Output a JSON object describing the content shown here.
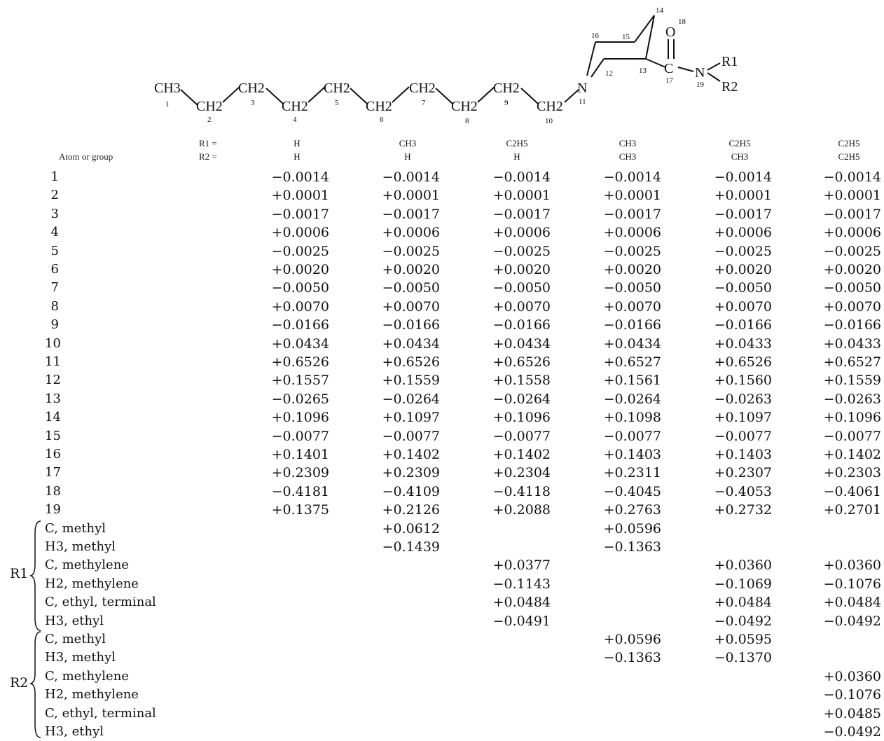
{
  "structure": {
    "labels": {
      "ch3": "CH3",
      "ch2": "CH2",
      "n": "N",
      "c": "C",
      "o": "O",
      "r1": "R1",
      "r2": "R2",
      "nums": [
        "1",
        "2",
        "3",
        "4",
        "5",
        "6",
        "7",
        "8",
        "9",
        "10",
        "11",
        "12",
        "13",
        "14",
        "15",
        "16",
        "17",
        "18",
        "19"
      ]
    }
  },
  "header": {
    "atom_label": "Atom or group",
    "r1_label": "R1 =",
    "r2_label": "R2 =",
    "columns": [
      {
        "r1": "H",
        "r2": "H"
      },
      {
        "r1": "CH3",
        "r2": "H"
      },
      {
        "r1": "C2H5",
        "r2": "H"
      },
      {
        "r1": "CH3",
        "r2": "CH3"
      },
      {
        "r1": "C2H5",
        "r2": "CH3"
      },
      {
        "r1": "C2H5",
        "r2": "C2H5"
      }
    ]
  },
  "rows": [
    {
      "name": "1",
      "v": [
        "−0.0014",
        "−0.0014",
        "−0.0014",
        "−0.0014",
        "−0.0014",
        "−0.0014"
      ]
    },
    {
      "name": "2",
      "v": [
        "+0.0001",
        "+0.0001",
        "+0.0001",
        "+0.0001",
        "+0.0001",
        "+0.0001"
      ]
    },
    {
      "name": "3",
      "v": [
        "−0.0017",
        "−0.0017",
        "−0.0017",
        "−0.0017",
        "−0.0017",
        "−0.0017"
      ]
    },
    {
      "name": "4",
      "v": [
        "+0.0006",
        "+0.0006",
        "+0.0006",
        "+0.0006",
        "+0.0006",
        "+0.0006"
      ]
    },
    {
      "name": "5",
      "v": [
        "−0.0025",
        "−0.0025",
        "−0.0025",
        "−0.0025",
        "−0.0025",
        "−0.0025"
      ]
    },
    {
      "name": "6",
      "v": [
        "+0.0020",
        "+0.0020",
        "+0.0020",
        "+0.0020",
        "+0.0020",
        "+0.0020"
      ]
    },
    {
      "name": "7",
      "v": [
        "−0.0050",
        "−0.0050",
        "−0.0050",
        "−0.0050",
        "−0.0050",
        "−0.0050"
      ]
    },
    {
      "name": "8",
      "v": [
        "+0.0070",
        "+0.0070",
        "+0.0070",
        "+0.0070",
        "+0.0070",
        "+0.0070"
      ]
    },
    {
      "name": "9",
      "v": [
        "−0.0166",
        "−0.0166",
        "−0.0166",
        "−0.0166",
        "−0.0166",
        "−0.0166"
      ]
    },
    {
      "name": "10",
      "v": [
        "+0.0434",
        "+0.0434",
        "+0.0434",
        "+0.0434",
        "+0.0433",
        "+0.0433"
      ]
    },
    {
      "name": "11",
      "v": [
        "+0.6526",
        "+0.6526",
        "+0.6526",
        "+0.6527",
        "+0.6526",
        "+0.6527"
      ]
    },
    {
      "name": "12",
      "v": [
        "+0.1557",
        "+0.1559",
        "+0.1558",
        "+0.1561",
        "+0.1560",
        "+0.1559"
      ]
    },
    {
      "name": "13",
      "v": [
        "−0.0265",
        "−0.0264",
        "−0.0264",
        "−0.0264",
        "−0.0263",
        "−0.0263"
      ]
    },
    {
      "name": "14",
      "v": [
        "+0.1096",
        "+0.1097",
        "+0.1096",
        "+0.1098",
        "+0.1097",
        "+0.1096"
      ]
    },
    {
      "name": "15",
      "v": [
        "−0.0077",
        "−0.0077",
        "−0.0077",
        "−0.0077",
        "−0.0077",
        "−0.0077"
      ]
    },
    {
      "name": "16",
      "v": [
        "+0.1401",
        "+0.1402",
        "+0.1402",
        "+0.1403",
        "+0.1403",
        "+0.1402"
      ]
    },
    {
      "name": "17",
      "v": [
        "+0.2309",
        "+0.2309",
        "+0.2304",
        "+0.2311",
        "+0.2307",
        "+0.2303"
      ]
    },
    {
      "name": "18",
      "v": [
        "−0.4181",
        "−0.4109",
        "−0.4118",
        "−0.4045",
        "−0.4053",
        "−0.4061"
      ]
    },
    {
      "name": "19",
      "v": [
        "+0.1375",
        "+0.2126",
        "+0.2088",
        "+0.2763",
        "+0.2732",
        "+0.2701"
      ]
    },
    {
      "name": "C, methyl",
      "v": [
        "",
        "+0.0612",
        "",
        "+0.0596",
        "",
        ""
      ]
    },
    {
      "name": "H3, methyl",
      "v": [
        "",
        "−0.1439",
        "",
        "−0.1363",
        "",
        ""
      ]
    },
    {
      "name": "C, methylene",
      "v": [
        "",
        "",
        "+0.0377",
        "",
        "+0.0360",
        "+0.0360"
      ]
    },
    {
      "name": "H2, methylene",
      "v": [
        "",
        "",
        "−0.1143",
        "",
        "−0.1069",
        "−0.1076"
      ]
    },
    {
      "name": "C, ethyl, terminal",
      "v": [
        "",
        "",
        "+0.0484",
        "",
        "+0.0484",
        "+0.0484"
      ]
    },
    {
      "name": "H3, ethyl",
      "v": [
        "",
        "",
        "−0.0491",
        "",
        "−0.0492",
        "−0.0492"
      ]
    },
    {
      "name": "C, methyl",
      "v": [
        "",
        "",
        "",
        "+0.0596",
        "+0.0595",
        ""
      ]
    },
    {
      "name": "H3, methyl",
      "v": [
        "",
        "",
        "",
        "−0.1363",
        "−0.1370",
        ""
      ]
    },
    {
      "name": "C, methylene",
      "v": [
        "",
        "",
        "",
        "",
        "",
        "+0.0360"
      ]
    },
    {
      "name": "H2, methylene",
      "v": [
        "",
        "",
        "",
        "",
        "",
        "−0.1076"
      ]
    },
    {
      "name": "C, ethyl, terminal",
      "v": [
        "",
        "",
        "",
        "",
        "",
        "+0.0485"
      ]
    },
    {
      "name": "H3, ethyl",
      "v": [
        "",
        "",
        "",
        "",
        "",
        "−0.0492"
      ]
    }
  ],
  "groups": {
    "r1": "R1",
    "r2": "R2"
  }
}
